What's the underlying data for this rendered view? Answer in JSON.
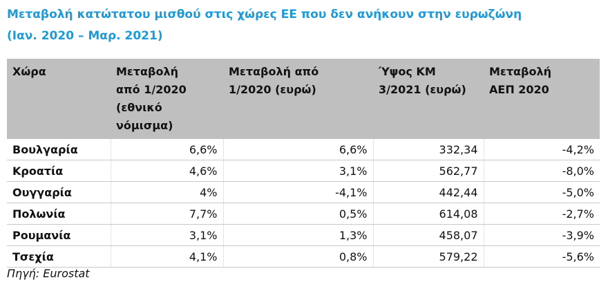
{
  "title": [
    "Μεταβολή κατώτατου μισθού στις χώρες ΕΕ που δεν ανήκουν  στην ευρωζώνη",
    "(Ιαν. 2020 – Μαρ. 2021)"
  ],
  "table": {
    "header": [
      [
        "Χώρα"
      ],
      [
        "Μεταβολή",
        "από 1/2020",
        "(εθνικό",
        "νόμισμα)"
      ],
      [
        "Μεταβολή από",
        "1/2020 (ευρώ)"
      ],
      [
        "Ύψος ΚΜ",
        "3/2021 (ευρώ)"
      ],
      [
        "Μεταβολή",
        "ΑΕΠ 2020"
      ]
    ],
    "rows": [
      [
        "Βουλγαρία",
        "6,6%",
        "6,6%",
        "332,34",
        "-4,2%"
      ],
      [
        "Κροατία",
        "4,6%",
        "3,1%",
        "562,77",
        "-8,0%"
      ],
      [
        "Ουγγαρία",
        "4%",
        "-4,1%",
        "442,44",
        "-5,0%"
      ],
      [
        "Πολωνία",
        "7,7%",
        "0,5%",
        "614,08",
        "-2,7%"
      ],
      [
        "Ρουμανία",
        "3,1%",
        "1,3%",
        "458,07",
        "-3,9%"
      ],
      [
        "Τσεχία",
        "4,1%",
        "0,8%",
        "579,22",
        "-5,6%"
      ]
    ]
  },
  "source": "Πηγή: Eurostat"
}
